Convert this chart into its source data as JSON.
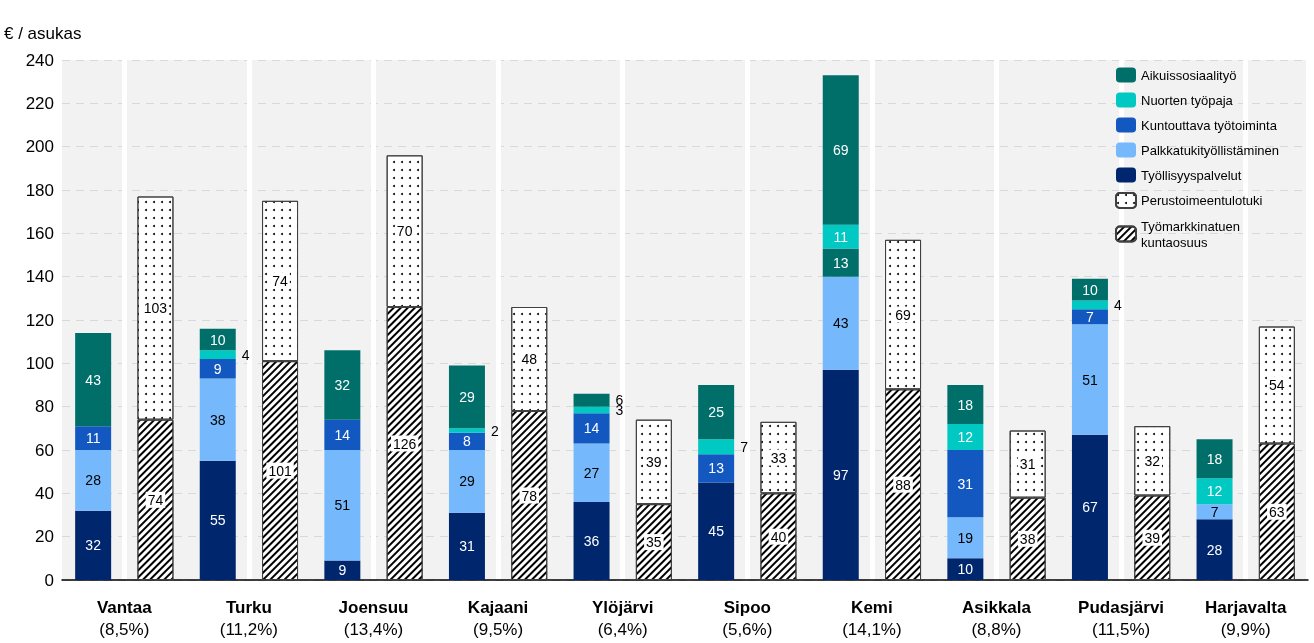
{
  "chart_data": {
    "type": "bar",
    "ylabel": "€ / asukas",
    "stacked": true,
    "data_labels": true,
    "grid": true,
    "legend": "top right",
    "categories": [
      "Vantaa (8,5%)",
      null,
      "Turku (11,2%)",
      null,
      "Joensuu (13,4%)",
      null,
      "Kajaani (9,5%)",
      null,
      "Ylöjärvi (6,4%)",
      null,
      "Sipoo (5,6%)",
      null,
      "Kemi (14,1%)",
      null,
      "Asikkala (8,8%)",
      null,
      "Pudasjärvi (11,5%)",
      null,
      "Harjavalta (9,9%)",
      null
    ],
    "ylim": [
      0,
      240
    ],
    "yticks": [
      0,
      20,
      40,
      60,
      80,
      100,
      120,
      140,
      160,
      180,
      200,
      220,
      240
    ],
    "series": [
      {
        "name": "Työllisyyspalvelut",
        "color": "#00276e",
        "values": [
          32,
          null,
          55,
          null,
          9,
          null,
          31,
          null,
          36,
          null,
          45,
          null,
          97,
          null,
          10,
          null,
          67,
          null,
          28,
          null
        ]
      },
      {
        "name": "Palkkatukityöllistäminen",
        "color": "#75b8fc",
        "values": [
          28,
          null,
          38,
          null,
          51,
          null,
          29,
          null,
          27,
          null,
          null,
          null,
          43,
          null,
          19,
          null,
          51,
          null,
          7,
          null
        ]
      },
      {
        "name": "Kuntouttava työtoiminta",
        "color": "#1358c0",
        "colors": [
          "#1358c0",
          "#1358c0",
          "#1358c0",
          "#1358c0",
          "#1358c0",
          "#1358c0",
          "#1358c0",
          "#1358c0",
          "#1358c0",
          "#1358c0",
          "#1358c0",
          "#1358c0",
          "#006f6a",
          "#1358c0",
          "#1358c0",
          "#1358c0",
          "#1358c0",
          "#1358c0",
          "#1358c0",
          "#1358c0"
        ],
        "values": [
          11,
          null,
          9,
          null,
          14,
          null,
          8,
          null,
          14,
          null,
          13,
          null,
          13,
          null,
          31,
          null,
          7,
          null,
          null,
          null
        ]
      },
      {
        "name": "Nuorten työpaja",
        "color": "#00c8c3",
        "values": [
          null,
          null,
          4,
          null,
          null,
          null,
          2,
          null,
          3,
          null,
          7,
          null,
          11,
          null,
          12,
          null,
          4,
          null,
          12,
          null
        ]
      },
      {
        "name": "Aikuissosiaalityö",
        "color": "#006f6a",
        "values": [
          43,
          null,
          10,
          null,
          32,
          null,
          29,
          null,
          6,
          null,
          25,
          null,
          69,
          null,
          18,
          null,
          10,
          null,
          18,
          null
        ]
      },
      {
        "name": "Työmarkkinatuen kuntaosuus",
        "color": "#ffffff",
        "values": [
          null,
          74,
          null,
          101,
          null,
          126,
          null,
          78,
          null,
          35,
          null,
          40,
          null,
          88,
          null,
          38,
          null,
          39,
          null,
          63
        ]
      },
      {
        "name": "Perustoimeentulotuki",
        "color": "#ffffff",
        "values": [
          null,
          103,
          null,
          74,
          null,
          70,
          null,
          48,
          null,
          39,
          null,
          33,
          null,
          69,
          null,
          31,
          null,
          32,
          null,
          54
        ]
      }
    ]
  }
}
